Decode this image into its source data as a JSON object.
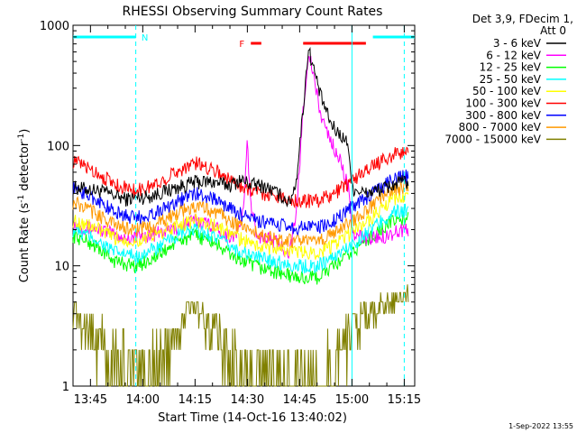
{
  "chart_data": {
    "type": "line",
    "title": "RHESSI Observing Summary Count Rates",
    "xlabel": "Start Time (14-Oct-16 13:40:02)",
    "ylabel_main": "Count Rate (s",
    "ylabel_sup1": "-1",
    "ylabel_mid": " detector",
    "ylabel_sup2": "-1",
    "ylabel_end": ")",
    "x_unit": "minutes after 13:40:02",
    "xlim": [
      0,
      98
    ],
    "ylim": [
      1,
      1000
    ],
    "y_scale": "log",
    "x_ticks": [
      {
        "t": 5,
        "label": "13:45"
      },
      {
        "t": 20,
        "label": "14:00"
      },
      {
        "t": 35,
        "label": "14:15"
      },
      {
        "t": 50,
        "label": "14:30"
      },
      {
        "t": 65,
        "label": "14:45"
      },
      {
        "t": 80,
        "label": "15:00"
      },
      {
        "t": 95,
        "label": "15:15"
      }
    ],
    "y_ticks": [
      {
        "v": 1,
        "label": "1"
      },
      {
        "v": 10,
        "label": "10"
      },
      {
        "v": 100,
        "label": "100"
      },
      {
        "v": 1000,
        "label": "1000"
      }
    ],
    "legend_header": [
      "Det 3,9, FDecim 1,",
      "Att 0"
    ],
    "series": [
      {
        "name": "3 - 6 keV",
        "color": "#000000",
        "points": [
          [
            0,
            45
          ],
          [
            8,
            42
          ],
          [
            15,
            36
          ],
          [
            22,
            38
          ],
          [
            30,
            45
          ],
          [
            35,
            50
          ],
          [
            40,
            50
          ],
          [
            45,
            47
          ],
          [
            48,
            52
          ],
          [
            51,
            48
          ],
          [
            55,
            46
          ],
          [
            60,
            38
          ],
          [
            62,
            33
          ],
          [
            64,
            50
          ],
          [
            66,
            200
          ],
          [
            67.5,
            650
          ],
          [
            68.5,
            500
          ],
          [
            71,
            260
          ],
          [
            74,
            150
          ],
          [
            77,
            120
          ],
          [
            79,
            103
          ],
          [
            80,
            45
          ],
          [
            84,
            40
          ],
          [
            89,
            44
          ],
          [
            94,
            50
          ],
          [
            96,
            50
          ]
        ]
      },
      {
        "name": "6 - 12 keV",
        "color": "#ff00ff",
        "points": [
          [
            0,
            22
          ],
          [
            8,
            20
          ],
          [
            15,
            17
          ],
          [
            22,
            18
          ],
          [
            30,
            21
          ],
          [
            35,
            24
          ],
          [
            40,
            22
          ],
          [
            44,
            18
          ],
          [
            47,
            18
          ],
          [
            49,
            30
          ],
          [
            50,
            110
          ],
          [
            51,
            30
          ],
          [
            53,
            18
          ],
          [
            58,
            16
          ],
          [
            62,
            13
          ],
          [
            64,
            25
          ],
          [
            66,
            200
          ],
          [
            67.5,
            590
          ],
          [
            68.5,
            450
          ],
          [
            71,
            180
          ],
          [
            74,
            110
          ],
          [
            77,
            70
          ],
          [
            79,
            45
          ],
          [
            80,
            18
          ],
          [
            85,
            17
          ],
          [
            90,
            18
          ],
          [
            94,
            20
          ],
          [
            96,
            20
          ]
        ]
      },
      {
        "name": "12 - 25 keV",
        "color": "#00ff00",
        "points": [
          [
            0,
            18
          ],
          [
            6,
            15
          ],
          [
            12,
            11
          ],
          [
            18,
            10
          ],
          [
            24,
            12
          ],
          [
            30,
            16
          ],
          [
            35,
            18
          ],
          [
            40,
            16
          ],
          [
            46,
            12
          ],
          [
            52,
            10
          ],
          [
            58,
            9
          ],
          [
            64,
            8
          ],
          [
            70,
            8
          ],
          [
            75,
            10
          ],
          [
            80,
            13
          ],
          [
            86,
            18
          ],
          [
            92,
            24
          ],
          [
            96,
            25
          ]
        ]
      },
      {
        "name": "25 - 50 keV",
        "color": "#00ffff",
        "points": [
          [
            0,
            20
          ],
          [
            6,
            17
          ],
          [
            12,
            13
          ],
          [
            18,
            12
          ],
          [
            24,
            14
          ],
          [
            30,
            18
          ],
          [
            35,
            20
          ],
          [
            40,
            18
          ],
          [
            46,
            14
          ],
          [
            52,
            12
          ],
          [
            58,
            11
          ],
          [
            64,
            10
          ],
          [
            70,
            10
          ],
          [
            75,
            12
          ],
          [
            80,
            15
          ],
          [
            86,
            21
          ],
          [
            92,
            28
          ],
          [
            96,
            29
          ]
        ]
      },
      {
        "name": "50 - 100 keV",
        "color": "#ffff00",
        "points": [
          [
            0,
            24
          ],
          [
            6,
            21
          ],
          [
            12,
            17
          ],
          [
            18,
            16
          ],
          [
            24,
            18
          ],
          [
            30,
            22
          ],
          [
            35,
            24
          ],
          [
            40,
            22
          ],
          [
            46,
            18
          ],
          [
            52,
            15
          ],
          [
            58,
            14
          ],
          [
            64,
            13
          ],
          [
            70,
            13
          ],
          [
            75,
            15
          ],
          [
            80,
            19
          ],
          [
            86,
            26
          ],
          [
            92,
            36
          ],
          [
            96,
            38
          ]
        ]
      },
      {
        "name": "100 - 300 keV",
        "color": "#ff0000",
        "points": [
          [
            0,
            75
          ],
          [
            6,
            62
          ],
          [
            12,
            48
          ],
          [
            18,
            42
          ],
          [
            24,
            48
          ],
          [
            30,
            62
          ],
          [
            35,
            72
          ],
          [
            40,
            65
          ],
          [
            46,
            50
          ],
          [
            52,
            42
          ],
          [
            58,
            38
          ],
          [
            64,
            35
          ],
          [
            70,
            35
          ],
          [
            75,
            40
          ],
          [
            80,
            52
          ],
          [
            86,
            68
          ],
          [
            92,
            85
          ],
          [
            96,
            88
          ]
        ]
      },
      {
        "name": "300 - 800 keV",
        "color": "#0000ff",
        "points": [
          [
            0,
            45
          ],
          [
            6,
            37
          ],
          [
            12,
            28
          ],
          [
            18,
            25
          ],
          [
            24,
            28
          ],
          [
            30,
            35
          ],
          [
            35,
            40
          ],
          [
            40,
            37
          ],
          [
            46,
            29
          ],
          [
            52,
            24
          ],
          [
            58,
            22
          ],
          [
            64,
            21
          ],
          [
            70,
            21
          ],
          [
            75,
            24
          ],
          [
            80,
            31
          ],
          [
            86,
            40
          ],
          [
            92,
            53
          ],
          [
            96,
            56
          ]
        ]
      },
      {
        "name": "800 - 7000 keV",
        "color": "#ff9900",
        "points": [
          [
            0,
            34
          ],
          [
            6,
            28
          ],
          [
            12,
            22
          ],
          [
            18,
            20
          ],
          [
            24,
            22
          ],
          [
            30,
            28
          ],
          [
            35,
            31
          ],
          [
            40,
            29
          ],
          [
            46,
            23
          ],
          [
            52,
            19
          ],
          [
            58,
            17
          ],
          [
            64,
            16
          ],
          [
            70,
            16
          ],
          [
            75,
            19
          ],
          [
            80,
            24
          ],
          [
            86,
            32
          ],
          [
            92,
            44
          ],
          [
            96,
            46
          ]
        ]
      },
      {
        "name": "7000 - 15000 keV",
        "color": "#808000",
        "points": [
          [
            0,
            4
          ],
          [
            5,
            3
          ],
          [
            10,
            2
          ],
          [
            20,
            1
          ],
          [
            30,
            3
          ],
          [
            35,
            5
          ],
          [
            40,
            3
          ],
          [
            45,
            2
          ],
          [
            50,
            1
          ],
          [
            70,
            1
          ],
          [
            80,
            3
          ],
          [
            90,
            5
          ],
          [
            96,
            6
          ]
        ]
      }
    ],
    "markers": [
      {
        "label": "N",
        "color": "#00ffff",
        "segments": [
          [
            0,
            18
          ],
          [
            86,
            98
          ]
        ]
      },
      {
        "label": "F",
        "color": "#ff0000",
        "segments": [
          [
            51,
            54
          ],
          [
            66,
            84
          ]
        ]
      }
    ],
    "vlines": [
      {
        "t": 18,
        "style": "dashed",
        "color": "#00ffff"
      },
      {
        "t": 80,
        "style": "solid",
        "color": "#00ffff"
      },
      {
        "t": 95,
        "style": "dashed",
        "color": "#00ffff"
      }
    ]
  },
  "footer_timestamp": "1-Sep-2022 13:55"
}
